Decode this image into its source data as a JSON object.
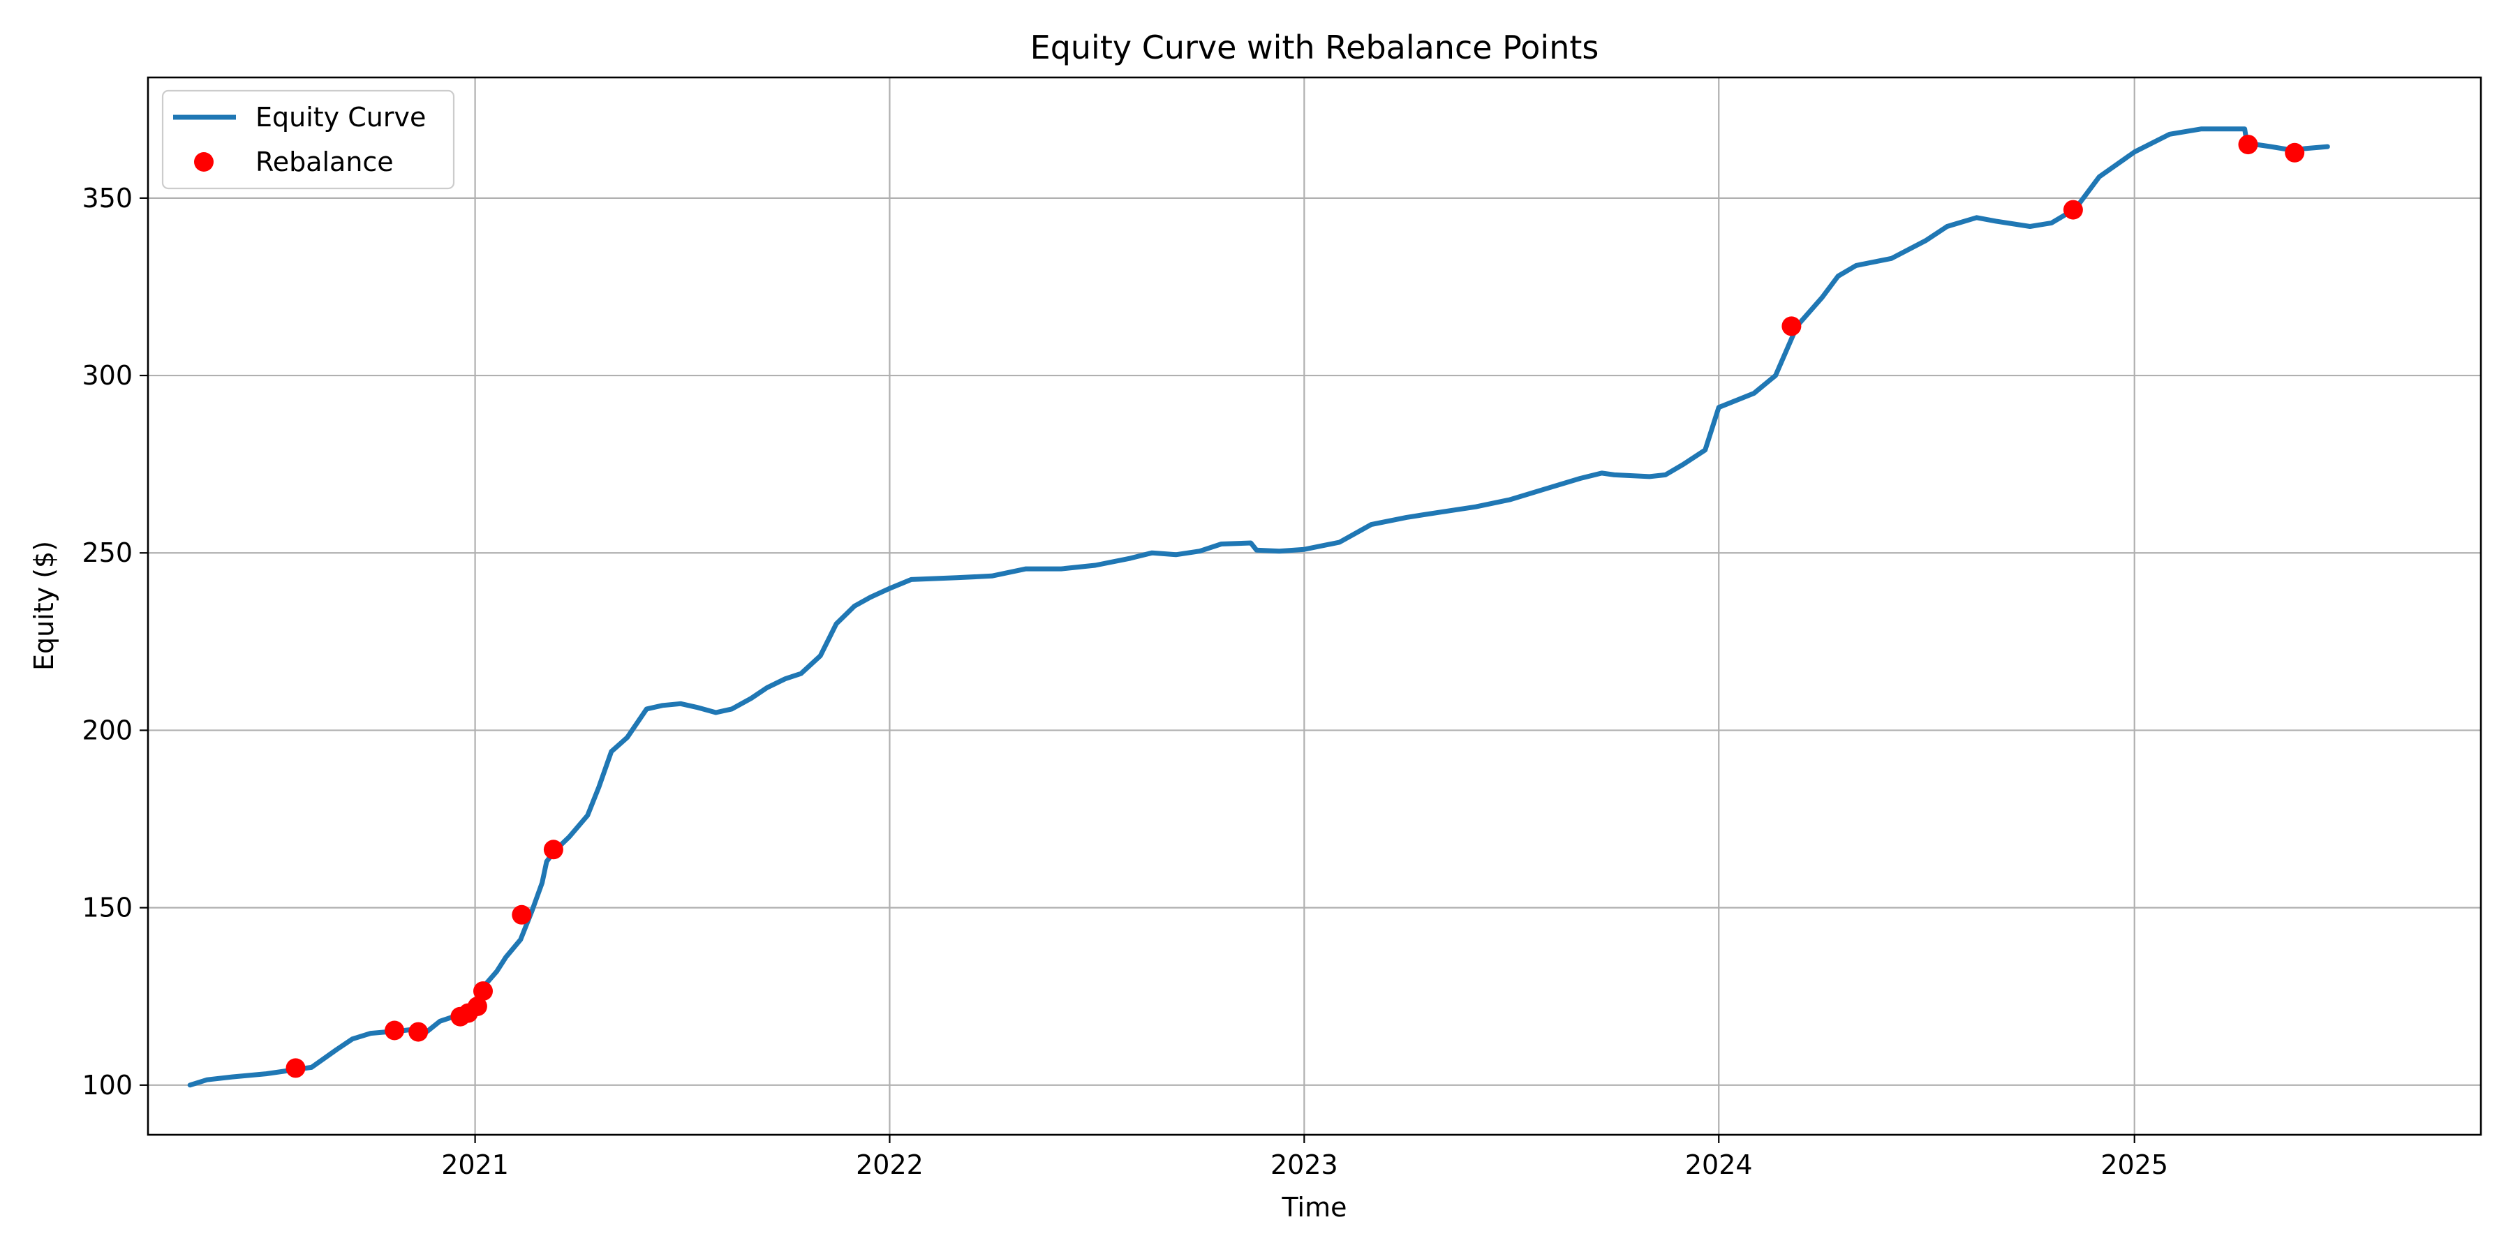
{
  "chart_data": {
    "type": "line",
    "title": "Equity Curve with Rebalance Points",
    "xlabel": "Time",
    "ylabel": "Equity ($)",
    "xlim": [
      "2020-03-19",
      "2025-11-02"
    ],
    "ylim": [
      86,
      384
    ],
    "grid": true,
    "legend_position": "top-left",
    "x_ticks": [
      "2021-01-01",
      "2022-01-01",
      "2023-01-01",
      "2024-01-01",
      "2025-01-01"
    ],
    "x_tick_labels": [
      "2021",
      "2022",
      "2023",
      "2024",
      "2025"
    ],
    "y_ticks": [
      100,
      150,
      200,
      250,
      300,
      350
    ],
    "y_tick_labels": [
      "100",
      "150",
      "200",
      "250",
      "300",
      "350"
    ],
    "series": [
      {
        "name": "Equity Curve",
        "kind": "line",
        "color": "#1f77b4",
        "points": [
          [
            "2020-04-25",
            100
          ],
          [
            "2020-05-10",
            101.5
          ],
          [
            "2020-06-01",
            102.3
          ],
          [
            "2020-07-01",
            103.2
          ],
          [
            "2020-08-01",
            104.6
          ],
          [
            "2020-08-10",
            105
          ],
          [
            "2020-09-01",
            110
          ],
          [
            "2020-09-15",
            113
          ],
          [
            "2020-10-01",
            114.6
          ],
          [
            "2020-10-15",
            115
          ],
          [
            "2020-10-28",
            115.3
          ],
          [
            "2020-11-10",
            115.8
          ],
          [
            "2020-11-20",
            115.2
          ],
          [
            "2020-12-01",
            118
          ],
          [
            "2020-12-15",
            119.5
          ],
          [
            "2020-12-20",
            119.8
          ],
          [
            "2020-12-27",
            120.8
          ],
          [
            "2021-01-01",
            122
          ],
          [
            "2021-01-05",
            126.5
          ],
          [
            "2021-01-20",
            132
          ],
          [
            "2021-01-28",
            136
          ],
          [
            "2021-02-10",
            141
          ],
          [
            "2021-02-20",
            149
          ],
          [
            "2021-03-01",
            157
          ],
          [
            "2021-03-05",
            163
          ],
          [
            "2021-03-12",
            166
          ],
          [
            "2021-03-25",
            170
          ],
          [
            "2021-04-10",
            176
          ],
          [
            "2021-04-20",
            184
          ],
          [
            "2021-05-01",
            194
          ],
          [
            "2021-05-15",
            198
          ],
          [
            "2021-06-01",
            206
          ],
          [
            "2021-06-15",
            207
          ],
          [
            "2021-07-01",
            207.5
          ],
          [
            "2021-07-15",
            206.5
          ],
          [
            "2021-08-01",
            205
          ],
          [
            "2021-08-15",
            206
          ],
          [
            "2021-09-01",
            209
          ],
          [
            "2021-09-15",
            212
          ],
          [
            "2021-10-01",
            214.5
          ],
          [
            "2021-10-15",
            216
          ],
          [
            "2021-11-01",
            221
          ],
          [
            "2021-11-15",
            230
          ],
          [
            "2021-12-01",
            235
          ],
          [
            "2021-12-15",
            237.5
          ],
          [
            "2022-01-01",
            240
          ],
          [
            "2022-01-20",
            242.5
          ],
          [
            "2022-03-01",
            243
          ],
          [
            "2022-04-01",
            243.5
          ],
          [
            "2022-05-01",
            245.5
          ],
          [
            "2022-06-01",
            245.5
          ],
          [
            "2022-07-01",
            246.5
          ],
          [
            "2022-08-01",
            248.5
          ],
          [
            "2022-08-20",
            250
          ],
          [
            "2022-09-10",
            249.5
          ],
          [
            "2022-10-01",
            250.5
          ],
          [
            "2022-10-20",
            252.5
          ],
          [
            "2022-11-15",
            252.8
          ],
          [
            "2022-11-20",
            250.8
          ],
          [
            "2022-12-10",
            250.5
          ],
          [
            "2023-01-01",
            251
          ],
          [
            "2023-02-01",
            253
          ],
          [
            "2023-03-01",
            258
          ],
          [
            "2023-04-01",
            260
          ],
          [
            "2023-05-01",
            261.5
          ],
          [
            "2023-06-01",
            263
          ],
          [
            "2023-07-01",
            265
          ],
          [
            "2023-08-01",
            268
          ],
          [
            "2023-09-01",
            271
          ],
          [
            "2023-09-20",
            272.5
          ],
          [
            "2023-10-01",
            272
          ],
          [
            "2023-11-01",
            271.5
          ],
          [
            "2023-11-15",
            272
          ],
          [
            "2023-12-01",
            275
          ],
          [
            "2023-12-20",
            279
          ],
          [
            "2024-01-01",
            291
          ],
          [
            "2024-02-01",
            295
          ],
          [
            "2024-02-20",
            300
          ],
          [
            "2024-03-10",
            314
          ],
          [
            "2024-04-01",
            322
          ],
          [
            "2024-04-15",
            328
          ],
          [
            "2024-05-01",
            331
          ],
          [
            "2024-06-01",
            333
          ],
          [
            "2024-07-01",
            338
          ],
          [
            "2024-07-20",
            342
          ],
          [
            "2024-08-15",
            344.5
          ],
          [
            "2024-09-01",
            343.5
          ],
          [
            "2024-10-01",
            342
          ],
          [
            "2024-10-20",
            343
          ],
          [
            "2024-11-10",
            347
          ],
          [
            "2024-12-01",
            356
          ],
          [
            "2025-01-01",
            363
          ],
          [
            "2025-02-01",
            368
          ],
          [
            "2025-03-01",
            369.5
          ],
          [
            "2025-04-08",
            369.5
          ],
          [
            "2025-04-10",
            365.5
          ],
          [
            "2025-05-01",
            364.5
          ],
          [
            "2025-05-20",
            363.5
          ],
          [
            "2025-06-01",
            364
          ],
          [
            "2025-06-20",
            364.5
          ]
        ]
      },
      {
        "name": "Rebalance",
        "kind": "scatter",
        "color": "#ff0000",
        "points": [
          [
            "2020-07-27",
            104.8
          ],
          [
            "2020-10-22",
            115.4
          ],
          [
            "2020-11-12",
            115
          ],
          [
            "2020-12-19",
            119.3
          ],
          [
            "2020-12-26",
            120.3
          ],
          [
            "2021-01-03",
            122.2
          ],
          [
            "2021-01-08",
            126.5
          ],
          [
            "2021-02-11",
            148
          ],
          [
            "2021-03-11",
            166.4
          ],
          [
            "2024-03-05",
            313.9
          ],
          [
            "2024-11-08",
            346.7
          ],
          [
            "2025-04-11",
            365.1
          ],
          [
            "2025-05-22",
            362.8
          ]
        ]
      }
    ]
  }
}
